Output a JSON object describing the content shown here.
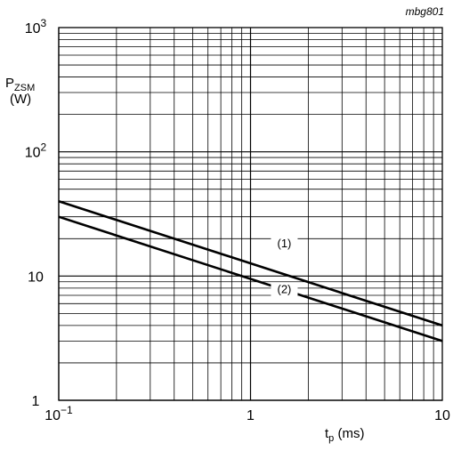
{
  "chart_data": {
    "type": "line",
    "x_scale": "log",
    "y_scale": "log",
    "xlim": [
      0.1,
      10
    ],
    "ylim": [
      1,
      1000
    ],
    "grid": true,
    "reference": "mbg801",
    "x_label": {
      "main": "t",
      "sub": "p",
      "unit": " (ms)"
    },
    "y_label": {
      "main": "P",
      "sub": "ZSM",
      "unit": "(W)"
    },
    "x_ticks": [
      {
        "value": 0.1,
        "label": "10",
        "sup": "−1"
      },
      {
        "value": 1,
        "label": "1",
        "sup": ""
      },
      {
        "value": 10,
        "label": "10",
        "sup": ""
      }
    ],
    "y_ticks": [
      {
        "value": 1,
        "label": "1",
        "sup": ""
      },
      {
        "value": 10,
        "label": "10",
        "sup": ""
      },
      {
        "value": 100,
        "label": "10",
        "sup": "2"
      },
      {
        "value": 1000,
        "label": "10",
        "sup": "3"
      }
    ],
    "series": [
      {
        "name": "(1)",
        "x": [
          0.1,
          10
        ],
        "y": [
          40,
          4
        ],
        "label_at": [
          1.5,
          17
        ]
      },
      {
        "name": "(2)",
        "x": [
          0.1,
          10
        ],
        "y": [
          30,
          3
        ],
        "label_at": [
          1.5,
          7.3
        ]
      }
    ],
    "colors": {
      "line": "#000000",
      "grid": "#000000",
      "background": "#ffffff"
    }
  }
}
